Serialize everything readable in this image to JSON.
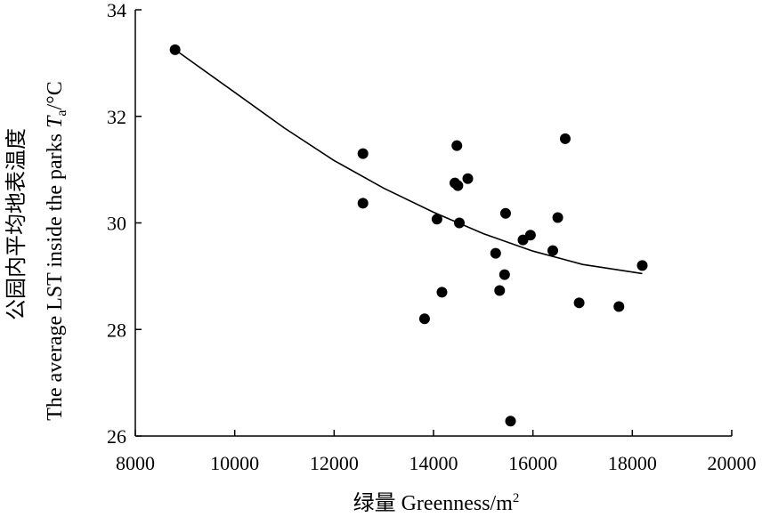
{
  "chart_data": {
    "type": "scatter",
    "title": "",
    "xlabel_prefix": "绿量 Greenness/m",
    "xlabel_sup": "2",
    "ylabel_cn": "公园内平均地表温度",
    "ylabel_en": "The average LST inside the parks ",
    "ylabel_var": "T",
    "ylabel_sub": "a",
    "ylabel_unit": "/°C",
    "xlim": [
      8000,
      20000
    ],
    "ylim": [
      26,
      34
    ],
    "xticks": [
      8000,
      10000,
      12000,
      14000,
      16000,
      18000,
      20000
    ],
    "yticks": [
      26,
      28,
      30,
      32,
      34
    ],
    "grid": false,
    "points": [
      {
        "x": 8800,
        "y": 33.25
      },
      {
        "x": 12580,
        "y": 31.3
      },
      {
        "x": 12580,
        "y": 30.37
      },
      {
        "x": 13820,
        "y": 28.2
      },
      {
        "x": 14070,
        "y": 30.07
      },
      {
        "x": 14170,
        "y": 28.7
      },
      {
        "x": 14430,
        "y": 30.75
      },
      {
        "x": 14470,
        "y": 31.45
      },
      {
        "x": 14490,
        "y": 30.7
      },
      {
        "x": 14520,
        "y": 30.0
      },
      {
        "x": 14690,
        "y": 30.83
      },
      {
        "x": 15250,
        "y": 29.43
      },
      {
        "x": 15330,
        "y": 28.73
      },
      {
        "x": 15430,
        "y": 29.03
      },
      {
        "x": 15450,
        "y": 30.18
      },
      {
        "x": 15550,
        "y": 26.28
      },
      {
        "x": 15800,
        "y": 29.68
      },
      {
        "x": 15950,
        "y": 29.77
      },
      {
        "x": 16400,
        "y": 29.48
      },
      {
        "x": 16500,
        "y": 30.1
      },
      {
        "x": 16650,
        "y": 31.58
      },
      {
        "x": 16930,
        "y": 28.5
      },
      {
        "x": 17730,
        "y": 28.43
      },
      {
        "x": 18200,
        "y": 29.2
      }
    ],
    "trendline": {
      "type": "exponential",
      "points": [
        {
          "x": 8800,
          "y": 33.25
        },
        {
          "x": 10000,
          "y": 32.45
        },
        {
          "x": 11000,
          "y": 31.78
        },
        {
          "x": 12000,
          "y": 31.17
        },
        {
          "x": 13000,
          "y": 30.65
        },
        {
          "x": 14000,
          "y": 30.2
        },
        {
          "x": 15000,
          "y": 29.8
        },
        {
          "x": 16000,
          "y": 29.47
        },
        {
          "x": 17000,
          "y": 29.22
        },
        {
          "x": 18200,
          "y": 29.05
        }
      ]
    }
  }
}
